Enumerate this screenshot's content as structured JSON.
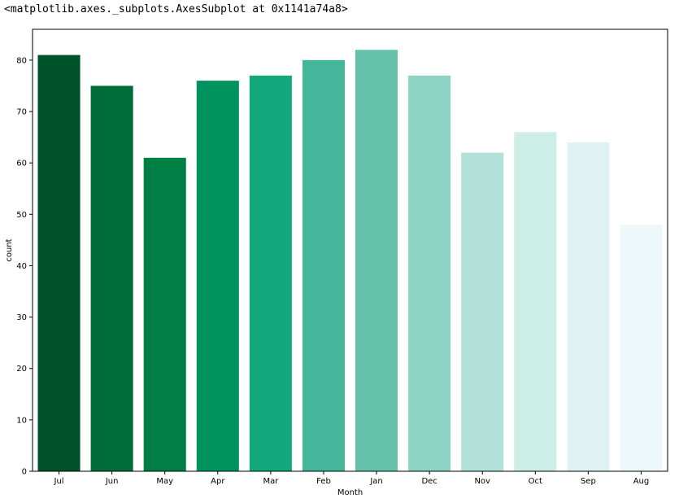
{
  "output_text": "<matplotlib.axes._subplots.AxesSubplot at 0x1141a74a8>",
  "chart_data": {
    "type": "bar",
    "categories": [
      "Jul",
      "Jun",
      "May",
      "Apr",
      "Mar",
      "Feb",
      "Jan",
      "Dec",
      "Nov",
      "Oct",
      "Sep",
      "Aug"
    ],
    "values": [
      81,
      75,
      61,
      76,
      77,
      80,
      82,
      77,
      62,
      66,
      64,
      48
    ],
    "colors": [
      "#00522a",
      "#006c38",
      "#007f45",
      "#00935d",
      "#12a87c",
      "#44b69a",
      "#64c2aa",
      "#8fd3c4",
      "#b1e1d8",
      "#cdede7",
      "#def1f3",
      "#ecf8fa"
    ],
    "title": "",
    "xlabel": "Month",
    "ylabel": "count",
    "ylim": [
      0,
      86
    ],
    "yticks": [
      0,
      10,
      20,
      30,
      40,
      50,
      60,
      70,
      80
    ],
    "grid": false
  }
}
